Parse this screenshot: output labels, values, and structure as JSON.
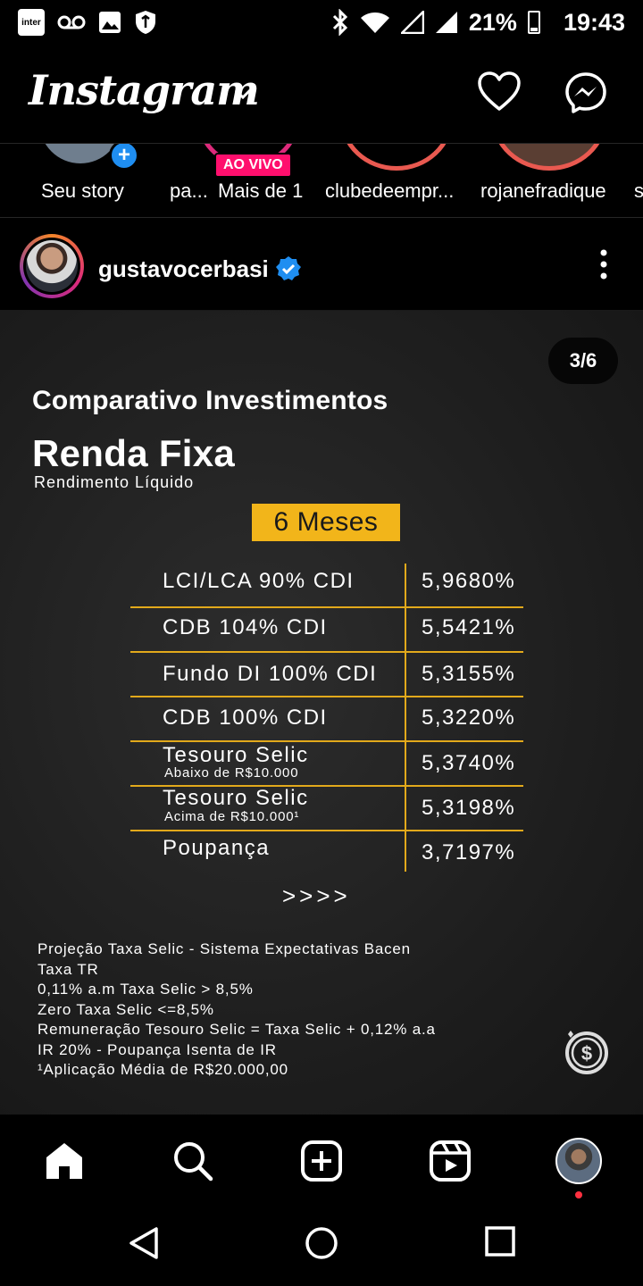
{
  "status_bar": {
    "app_badge": "inter",
    "battery": "21%",
    "time": "19:43",
    "icons": [
      "inter-icon",
      "voicemail-icon",
      "gallery-icon",
      "vpn-shield-icon",
      "bluetooth-icon",
      "wifi-icon",
      "signal-icon",
      "signal-icon",
      "battery-icon"
    ]
  },
  "header": {
    "logo": "Instagram",
    "icons": [
      "chevron-down-icon",
      "heart-icon",
      "messenger-icon"
    ]
  },
  "stories": [
    {
      "label": "Seu story",
      "live": false
    },
    {
      "label": "pa...",
      "live": false
    },
    {
      "label": "Mais de 1",
      "live": true,
      "badge": "AO VIVO"
    },
    {
      "label": "clubedeempr...",
      "live": false
    },
    {
      "label": "rojanefradique",
      "live": false
    },
    {
      "label": "s",
      "live": false
    }
  ],
  "post": {
    "username": "gustavocerbasi",
    "verified": true,
    "counter": "3/6",
    "title": "Comparativo Investimentos",
    "heading": "Renda Fixa",
    "subheading": "Rendimento Líquido",
    "period": "6 Meses",
    "rows": [
      {
        "name": "LCI/LCA 90% CDI",
        "note": "",
        "value": "5,9680%"
      },
      {
        "name": "CDB 104% CDI",
        "note": "",
        "value": "5,5421%"
      },
      {
        "name": "Fundo DI 100% CDI",
        "note": "",
        "value": "5,3155%"
      },
      {
        "name": "CDB 100% CDI",
        "note": "",
        "value": "5,3220%"
      },
      {
        "name": "Tesouro Selic",
        "note": "Abaixo de R$10.000",
        "value": "5,3740%"
      },
      {
        "name": "Tesouro Selic",
        "note": "Acima de R$10.000¹",
        "value": "5,3198%"
      },
      {
        "name": "Poupança",
        "note": "",
        "value": "3,7197%"
      }
    ],
    "arrows": ">>>>",
    "footnotes": [
      "Projeção Taxa Selic - Sistema Expectativas Bacen",
      "Taxa TR",
      "0,11% a.m Taxa Selic > 8,5%",
      "Zero Taxa Selic <=8,5%",
      "Remuneração Tesouro Selic = Taxa Selic + 0,12% a.a",
      "IR 20% - Poupança Isenta de IR",
      "¹Aplicação Média de R$20.000,00"
    ]
  },
  "bottom_nav": [
    "home-icon",
    "search-icon",
    "create-icon",
    "reels-icon",
    "profile-avatar"
  ],
  "android_nav": [
    "back-icon",
    "home-circle-icon",
    "recents-icon"
  ],
  "colors": {
    "accent_gold": "#f2b51a",
    "table_line": "#e2a91b",
    "live_pink": "#ff0f6d",
    "verified_blue": "#1f8ef1"
  }
}
